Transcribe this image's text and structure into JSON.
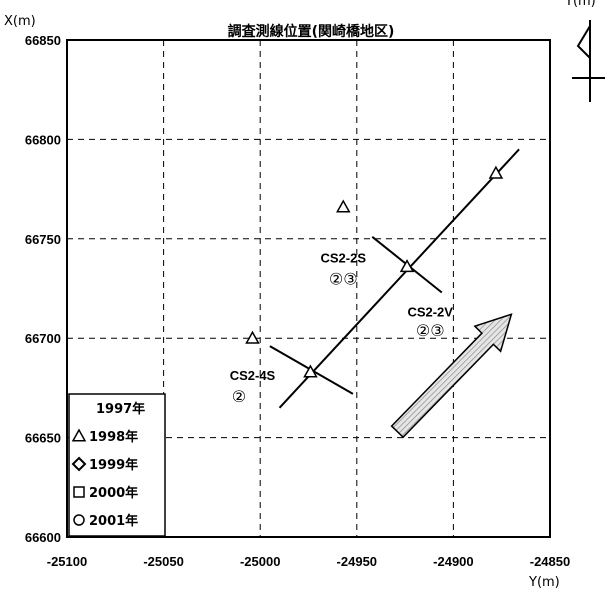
{
  "chart_data": {
    "type": "scatter",
    "title": "調査測線位置(関崎橋地区)",
    "xlabel": "Y(m)",
    "ylabel": "X(m)",
    "xlim": [
      -25100,
      -24850
    ],
    "ylim": [
      66600,
      66850
    ],
    "xticks": [
      -25100,
      -25050,
      -25000,
      -24950,
      -24900,
      -24850
    ],
    "yticks": [
      66600,
      66650,
      66700,
      66750,
      66800,
      66850
    ],
    "xtick_labels": [
      "-25100",
      "-25050",
      "-25000",
      "-24950",
      "-24900",
      "-24850"
    ],
    "ytick_labels": [
      "66600",
      "66650",
      "66700",
      "66750",
      "66800",
      "66850"
    ],
    "grid": true,
    "legend_position": "bottom-left",
    "series": [
      {
        "name": "1997年",
        "marker": "none",
        "points": []
      },
      {
        "name": "1998年",
        "marker": "triangle",
        "points": [
          {
            "x": -24957,
            "y": 66766
          },
          {
            "x": -25004,
            "y": 66700
          },
          {
            "x": -24974,
            "y": 66683
          },
          {
            "x": -24924,
            "y": 66736
          },
          {
            "x": -24878,
            "y": 66783
          }
        ]
      },
      {
        "name": "1999年",
        "marker": "diamond",
        "points": []
      },
      {
        "name": "2000年",
        "marker": "square",
        "points": []
      },
      {
        "name": "2001年",
        "marker": "circle",
        "points": []
      }
    ],
    "lines": [
      {
        "id": "main-line",
        "from": {
          "x": -24990,
          "y": 66665
        },
        "to": {
          "x": -24866,
          "y": 66795
        }
      },
      {
        "id": "cs2-2s",
        "from": {
          "x": -24942,
          "y": 66751
        },
        "to": {
          "x": -24906,
          "y": 66723
        }
      },
      {
        "id": "cs2-4s",
        "from": {
          "x": -24995,
          "y": 66696
        },
        "to": {
          "x": -24952,
          "y": 66672
        }
      }
    ],
    "annotations": [
      {
        "id": "cs2-2s",
        "text": "CS2-2S",
        "x": -24957,
        "y": 66738
      },
      {
        "id": "cs2-2s-nums",
        "text": "②③",
        "x": -24957,
        "y": 66727
      },
      {
        "id": "cs2-2v",
        "text": "CS2-2V",
        "x": -24912,
        "y": 66711
      },
      {
        "id": "cs2-2v-nums",
        "text": "②③",
        "x": -24912,
        "y": 66701
      },
      {
        "id": "cs2-4s",
        "text": "CS2-4S",
        "x": -25004,
        "y": 66679
      },
      {
        "id": "cs2-4s-nums",
        "text": "②",
        "x": -25011,
        "y": 66668
      }
    ],
    "flow_arrow": {
      "from": {
        "x": -24929,
        "y": 66653
      },
      "to": {
        "x": -24870,
        "y": 66712
      }
    },
    "north_label": "Y(m)"
  }
}
